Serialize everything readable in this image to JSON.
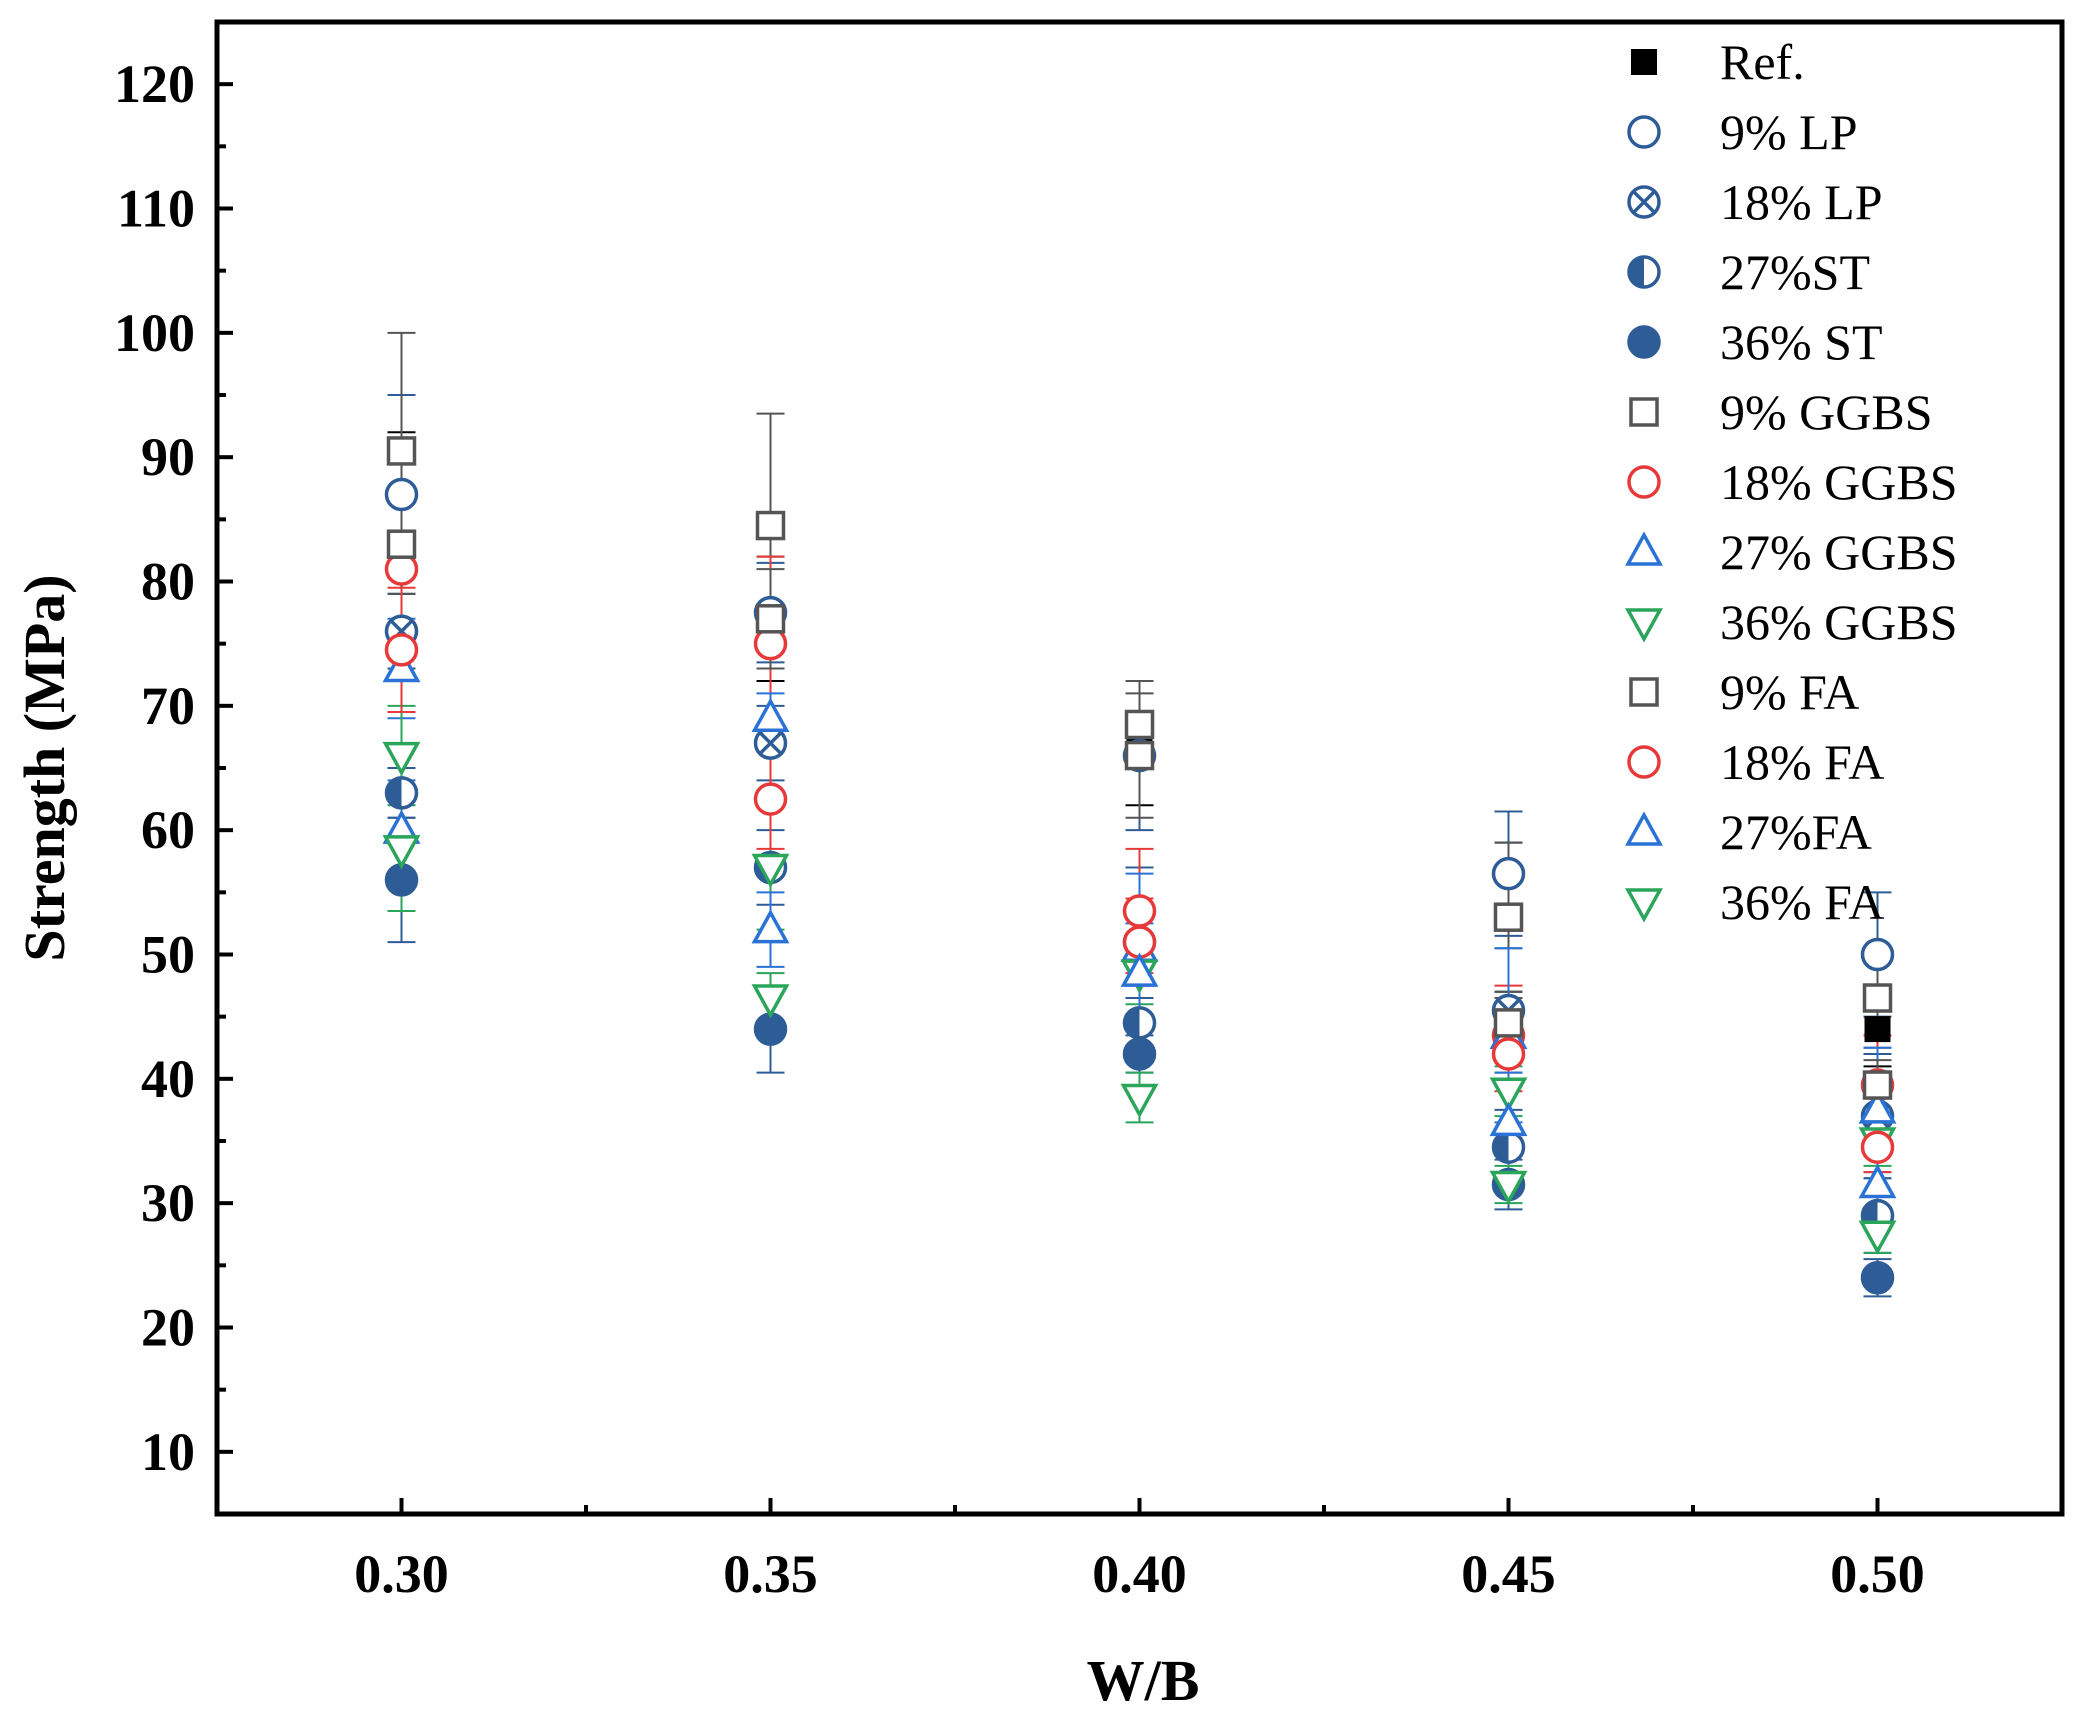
{
  "chart_data": {
    "type": "scatter",
    "title": "",
    "xlabel": "W/B",
    "ylabel": "Strength (MPa)",
    "xlim": [
      0.275,
      0.525
    ],
    "ylim": [
      5,
      125
    ],
    "x_ticks": [
      "0.30",
      "0.35",
      "0.40",
      "0.45",
      "0.50"
    ],
    "y_ticks": [
      "10",
      "20",
      "30",
      "40",
      "50",
      "60",
      "70",
      "80",
      "90",
      "100",
      "110",
      "120"
    ],
    "legend_position": "top-right",
    "x": [
      0.3,
      0.35,
      0.4,
      0.45,
      0.5
    ],
    "series": [
      {
        "name": "Ref.",
        "marker": "square-filled",
        "color": "#000000",
        "values": [
          83,
          77,
          67,
          53,
          44
        ],
        "errors": [
          9,
          5,
          5,
          6,
          3
        ]
      },
      {
        "name": "9% LP",
        "marker": "circle-open",
        "color": "#2e5c96",
        "values": [
          87,
          77.5,
          66,
          56.5,
          50
        ],
        "errors": [
          8,
          4,
          6,
          5,
          5
        ]
      },
      {
        "name": "18% LP",
        "marker": "circle-x",
        "color": "#2e5c96",
        "values": [
          76,
          67,
          51,
          45.5,
          37
        ],
        "errors": [
          3,
          3,
          6,
          5,
          5
        ]
      },
      {
        "name": "27%ST",
        "marker": "circle-half",
        "color": "#2e5c96",
        "values": [
          63,
          57,
          44.5,
          34.5,
          29
        ],
        "errors": [
          2,
          3,
          2,
          3,
          3
        ]
      },
      {
        "name": "36% ST",
        "marker": "circle-filled",
        "color": "#2e5c96",
        "values": [
          56,
          44,
          42,
          31.5,
          24
        ],
        "errors": [
          5,
          3.5,
          1.5,
          2,
          1.5
        ]
      },
      {
        "name": "9% GGBS",
        "marker": "square-open",
        "color": "#555555",
        "values": [
          90.5,
          84.5,
          68.5,
          53,
          46.5
        ],
        "errors": [
          9.5,
          9,
          3.5,
          6,
          4
        ]
      },
      {
        "name": "18% GGBS",
        "marker": "circle-open",
        "color": "#e8393a",
        "values": [
          81,
          75,
          53.5,
          43.5,
          39.5
        ],
        "errors": [
          6,
          7,
          5,
          4,
          4
        ]
      },
      {
        "name": "27% GGBS",
        "marker": "triangle-up-open",
        "color": "#2a72d6",
        "values": [
          73,
          69,
          50.5,
          43.5,
          37.5
        ],
        "errors": [
          4,
          2,
          6,
          7,
          5
        ]
      },
      {
        "name": "36% GGBS",
        "marker": "triangle-down-open",
        "color": "#2aa55a",
        "values": [
          66,
          57,
          48.5,
          39,
          35
        ],
        "errors": [
          4,
          5,
          2.5,
          2,
          2
        ]
      },
      {
        "name": "9% FA",
        "marker": "square-open",
        "color": "#555555",
        "values": [
          83,
          77,
          66,
          44.5,
          39.5
        ],
        "errors": [
          4,
          4,
          5,
          2,
          2
        ]
      },
      {
        "name": "18% FA",
        "marker": "circle-open",
        "color": "#e8393a",
        "values": [
          74.5,
          62.5,
          51,
          42,
          34.5
        ],
        "errors": [
          5,
          4,
          3.5,
          3,
          2
        ]
      },
      {
        "name": "27%FA",
        "marker": "triangle-up-open",
        "color": "#2a72d6",
        "values": [
          60,
          52,
          48.5,
          36.5,
          31.5
        ],
        "errors": [
          4,
          3,
          4,
          4,
          3
        ]
      },
      {
        "name": "36% FA",
        "marker": "triangle-down-open",
        "color": "#2aa55a",
        "values": [
          58.5,
          46.5,
          38.5,
          31.5,
          27.5
        ],
        "errors": [
          5,
          2,
          2,
          1.5,
          1.5
        ]
      }
    ]
  }
}
